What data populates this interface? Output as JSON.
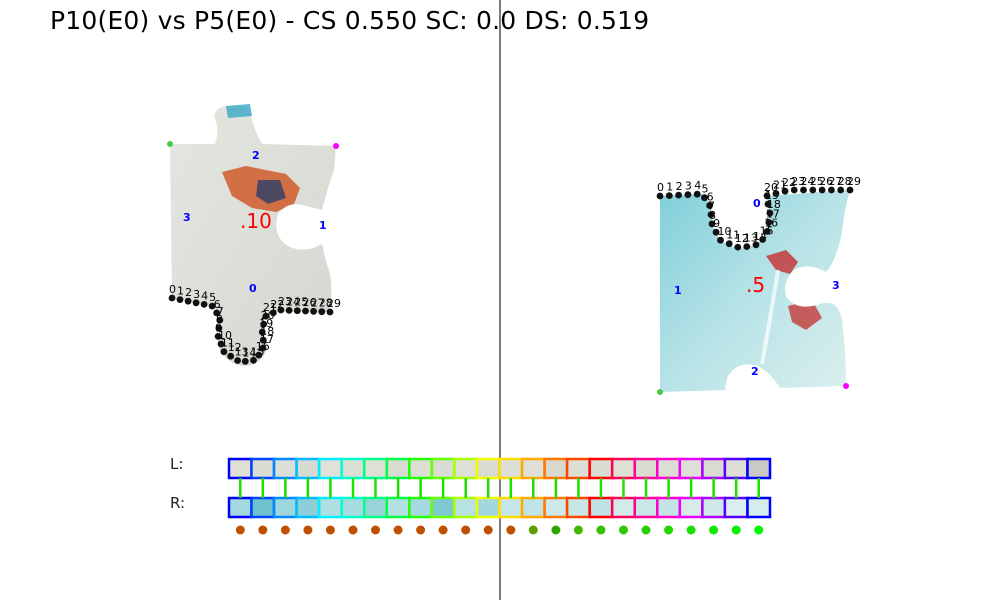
{
  "title": "P10(E0) vs P5(E0) - CS 0.550 SC: 0.0 DS: 0.519",
  "strip_labels": {
    "left": "L:",
    "right": "R:"
  },
  "left_piece": {
    "id_label": ".10",
    "edge_labels": [
      "0",
      "1",
      "2",
      "3"
    ],
    "fill": "#dde1da",
    "point_count": 30
  },
  "right_piece": {
    "id_label": ".5",
    "edge_labels": [
      "0",
      "1",
      "2",
      "3"
    ],
    "fill": "#a9dde3",
    "point_count": 30
  },
  "match_strip": {
    "cells": 24,
    "colors": [
      "#0000ff",
      "#0044ff",
      "#0088ff",
      "#00bbff",
      "#00eeff",
      "#00ffcc",
      "#00ff88",
      "#00ff44",
      "#22ff00",
      "#66ff00",
      "#aaff00",
      "#eeff00",
      "#ffdd00",
      "#ffaa00",
      "#ff7700",
      "#ff4400",
      "#ff0000",
      "#ff0055",
      "#ff0099",
      "#ff00cc",
      "#ee00ff",
      "#aa00ff",
      "#5500ff",
      "#0000ff"
    ],
    "left_fills": [
      "#dedfd5",
      "#d9dcd2",
      "#dcdfd6",
      "#d7dad0",
      "#e0e2da",
      "#dcded4",
      "#dee0d6",
      "#d8dbd1",
      "#dddfd5",
      "#dadcd3",
      "#dfe1d8",
      "#d9dbd2",
      "#dcdfd5",
      "#dee0d7",
      "#d8dad0",
      "#dddfd6",
      "#dadcd2",
      "#dfe1d7",
      "#d9dcd1",
      "#dcded5",
      "#dee0d8",
      "#d8dbd2",
      "#dddfd4",
      "#cbc9c3"
    ],
    "right_fills": [
      "#a3d9de",
      "#6fc2cf",
      "#9fd6dc",
      "#8ccfd8",
      "#b0dfe3",
      "#a8dbe0",
      "#9ad4db",
      "#b5e1e4",
      "#a6d9df",
      "#7ec8d2",
      "#b9e2e5",
      "#a2d7de",
      "#c5e6e7",
      "#c0e4e6",
      "#cce8e8",
      "#c7e6e6",
      "#bfe3e5",
      "#d2eaea",
      "#c9e7e7",
      "#c3e5e6",
      "#d6ebea",
      "#cfe9e9",
      "#dbeeed",
      "#d4ecec"
    ],
    "dot_colors": [
      "#c05000",
      "#c05000",
      "#c05000",
      "#c05000",
      "#c05000",
      "#c05000",
      "#c05000",
      "#c05000",
      "#c05000",
      "#c05000",
      "#c05000",
      "#c05000",
      "#c05000",
      "#5f9e00",
      "#2ea600",
      "#40b800",
      "#38c000",
      "#30c800",
      "#28d000",
      "#20d800",
      "#18e000",
      "#10e800",
      "#08f000",
      "#00f800"
    ]
  }
}
